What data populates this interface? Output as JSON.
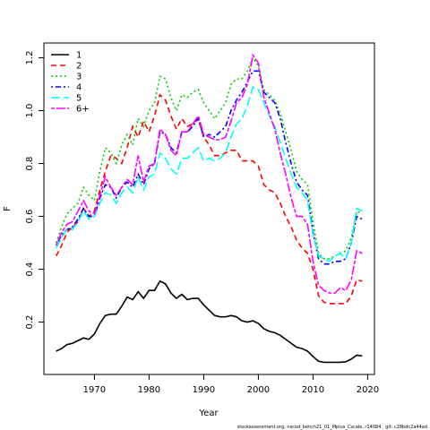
{
  "chart_data": {
    "type": "line",
    "x_label": "Year",
    "y_label": "F",
    "footer": "stockassessment.org, nscod_bench21_01_Mplus_Cscale, r14084 , git: c28bdc2a44ad",
    "x": [
      1963,
      1964,
      1965,
      1966,
      1967,
      1968,
      1969,
      1970,
      1971,
      1972,
      1973,
      1974,
      1975,
      1976,
      1977,
      1978,
      1979,
      1980,
      1981,
      1982,
      1983,
      1984,
      1985,
      1986,
      1987,
      1988,
      1989,
      1990,
      1991,
      1992,
      1993,
      1994,
      1995,
      1996,
      1997,
      1998,
      1999,
      2000,
      2001,
      2002,
      2003,
      2004,
      2005,
      2006,
      2007,
      2008,
      2009,
      2010,
      2011,
      2012,
      2013,
      2014,
      2015,
      2016,
      2017,
      2018,
      2019
    ],
    "xlim": [
      1960.76,
      2021.24
    ],
    "xticks": [
      1970,
      1980,
      1990,
      2000,
      2010,
      2020
    ],
    "ylim": [
      0.002,
      1.256
    ],
    "yticks": [
      0.2,
      0.4,
      0.6,
      0.8,
      {
        "value": 1,
        "label": "1.0"
      },
      1.2
    ],
    "legend": "top-left",
    "grid": false,
    "series": [
      {
        "name": "1",
        "color": "#000000",
        "dash": "none",
        "values": [
          0.09,
          0.1,
          0.115,
          0.12,
          0.13,
          0.14,
          0.135,
          0.155,
          0.195,
          0.225,
          0.23,
          0.23,
          0.26,
          0.295,
          0.285,
          0.315,
          0.29,
          0.32,
          0.32,
          0.355,
          0.345,
          0.31,
          0.29,
          0.305,
          0.285,
          0.29,
          0.29,
          0.265,
          0.245,
          0.225,
          0.22,
          0.22,
          0.225,
          0.22,
          0.205,
          0.2,
          0.205,
          0.195,
          0.175,
          0.165,
          0.16,
          0.15,
          0.135,
          0.12,
          0.105,
          0.1,
          0.09,
          0.07,
          0.052,
          0.048,
          0.048,
          0.048,
          0.048,
          0.05,
          0.06,
          0.075,
          0.072
        ]
      },
      {
        "name": "2",
        "color": "#FF0000",
        "dash": "6 4",
        "values": [
          0.45,
          0.49,
          0.54,
          0.56,
          0.58,
          0.63,
          0.6,
          0.62,
          0.7,
          0.77,
          0.83,
          0.82,
          0.8,
          0.86,
          0.94,
          0.9,
          0.96,
          0.92,
          0.98,
          1.06,
          1.04,
          0.98,
          0.93,
          0.97,
          0.94,
          0.95,
          0.97,
          0.9,
          0.87,
          0.83,
          0.83,
          0.84,
          0.85,
          0.85,
          0.81,
          0.81,
          0.81,
          0.79,
          0.72,
          0.7,
          0.69,
          0.65,
          0.6,
          0.56,
          0.51,
          0.48,
          0.46,
          0.4,
          0.3,
          0.275,
          0.27,
          0.27,
          0.27,
          0.27,
          0.3,
          0.36,
          0.355
        ]
      },
      {
        "name": "3",
        "color": "#00CD00",
        "dash": "2 3",
        "values": [
          0.5,
          0.56,
          0.61,
          0.63,
          0.65,
          0.71,
          0.68,
          0.66,
          0.77,
          0.86,
          0.84,
          0.8,
          0.87,
          0.91,
          0.87,
          0.97,
          0.94,
          1.0,
          1.03,
          1.13,
          1.12,
          1.05,
          1.0,
          1.06,
          1.05,
          1.07,
          1.08,
          1.03,
          1.0,
          0.97,
          1.0,
          1.03,
          1.1,
          1.12,
          1.12,
          1.15,
          1.2,
          1.17,
          1.08,
          1.06,
          1.04,
          0.99,
          0.92,
          0.85,
          0.77,
          0.74,
          0.72,
          0.58,
          0.46,
          0.44,
          0.44,
          0.45,
          0.46,
          0.47,
          0.52,
          0.62,
          0.61
        ]
      },
      {
        "name": "4",
        "color": "#0000FF",
        "dash": "2 3 6 3",
        "values": [
          0.49,
          0.53,
          0.55,
          0.56,
          0.59,
          0.63,
          0.6,
          0.6,
          0.67,
          0.72,
          0.71,
          0.67,
          0.71,
          0.73,
          0.71,
          0.76,
          0.72,
          0.78,
          0.8,
          0.92,
          0.91,
          0.86,
          0.84,
          0.92,
          0.92,
          0.94,
          0.97,
          0.9,
          0.91,
          0.9,
          0.92,
          0.94,
          1.0,
          1.04,
          1.07,
          1.11,
          1.15,
          1.15,
          1.07,
          1.05,
          1.03,
          0.97,
          0.88,
          0.8,
          0.73,
          0.7,
          0.68,
          0.54,
          0.44,
          0.42,
          0.42,
          0.43,
          0.43,
          0.44,
          0.5,
          0.6,
          0.59
        ]
      },
      {
        "name": "5",
        "color": "#00FFFF",
        "dash": "10 4",
        "values": [
          0.48,
          0.52,
          0.55,
          0.55,
          0.58,
          0.62,
          0.59,
          0.6,
          0.65,
          0.69,
          0.68,
          0.65,
          0.69,
          0.71,
          0.69,
          0.75,
          0.7,
          0.75,
          0.76,
          0.84,
          0.82,
          0.78,
          0.76,
          0.82,
          0.82,
          0.84,
          0.86,
          0.81,
          0.82,
          0.81,
          0.82,
          0.84,
          0.9,
          0.95,
          0.97,
          1.02,
          1.09,
          1.08,
          1.03,
          0.98,
          0.94,
          0.88,
          0.82,
          0.76,
          0.71,
          0.69,
          0.66,
          0.53,
          0.45,
          0.44,
          0.43,
          0.45,
          0.46,
          0.44,
          0.5,
          0.63,
          0.62
        ]
      },
      {
        "name": "6+",
        "color": "#FF00FF",
        "dash": "4 2 10 2",
        "values": [
          0.49,
          0.54,
          0.57,
          0.58,
          0.62,
          0.66,
          0.62,
          0.61,
          0.68,
          0.75,
          0.71,
          0.68,
          0.71,
          0.74,
          0.72,
          0.83,
          0.73,
          0.79,
          0.8,
          0.93,
          0.91,
          0.85,
          0.83,
          0.92,
          0.92,
          0.95,
          0.98,
          0.91,
          0.9,
          0.89,
          0.89,
          0.9,
          0.96,
          1.03,
          1.05,
          1.1,
          1.21,
          1.18,
          1.05,
          0.99,
          0.93,
          0.84,
          0.76,
          0.67,
          0.6,
          0.6,
          0.57,
          0.43,
          0.34,
          0.32,
          0.31,
          0.31,
          0.33,
          0.32,
          0.36,
          0.47,
          0.46
        ]
      }
    ]
  }
}
